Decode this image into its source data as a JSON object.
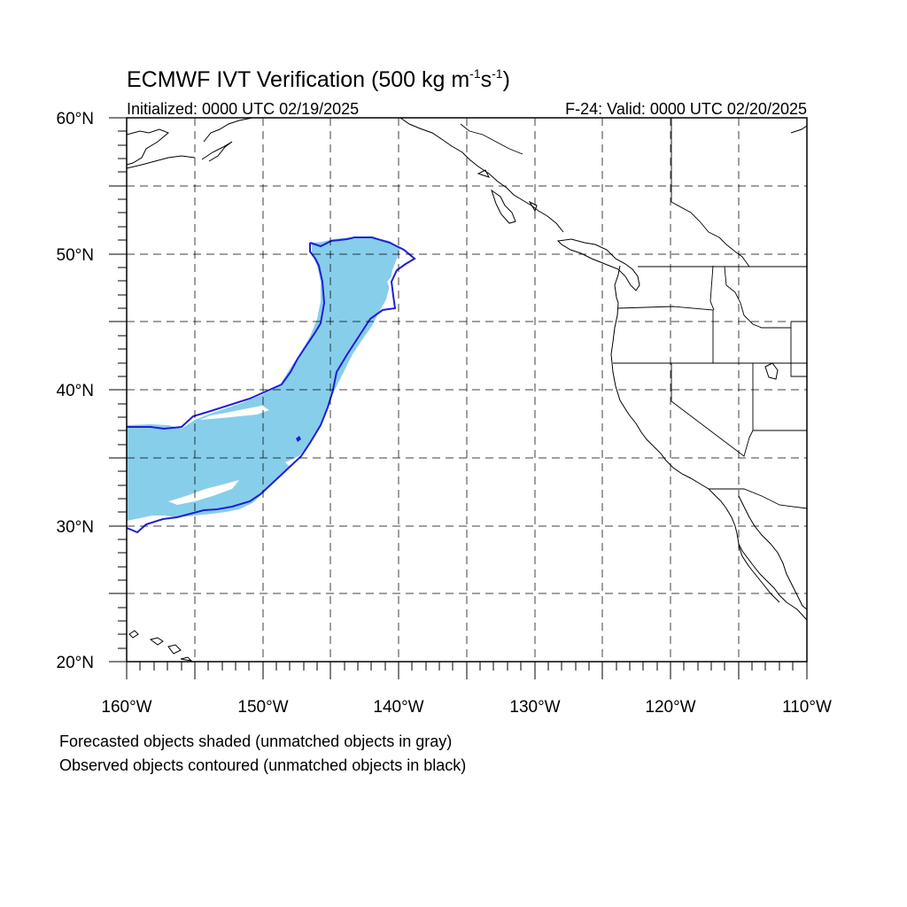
{
  "header": {
    "title_main": "ECMWF IVT Verification (500 kg m",
    "title_sup1": "-1",
    "title_mid": "s",
    "title_sup2": "-1",
    "title_end": ")",
    "initialized": "Initialized: 0000 UTC 02/19/2025",
    "valid": "F-24: Valid: 0000 UTC 02/20/2025"
  },
  "map": {
    "lon_range": [
      -160,
      -110
    ],
    "lat_range": [
      20,
      60
    ],
    "lat_labels": [
      "60°N",
      "50°N",
      "40°N",
      "30°N",
      "20°N"
    ],
    "lon_labels": [
      "160°W",
      "150°W",
      "140°W",
      "130°W",
      "120°W",
      "110°W"
    ],
    "forecast_color": "#87ceeb",
    "observed_color": "#1f1fd6"
  },
  "footer": {
    "line1": "Forecasted objects shaded (unmatched objects in gray)",
    "line2": "Observed objects contoured (unmatched objects in black)"
  }
}
